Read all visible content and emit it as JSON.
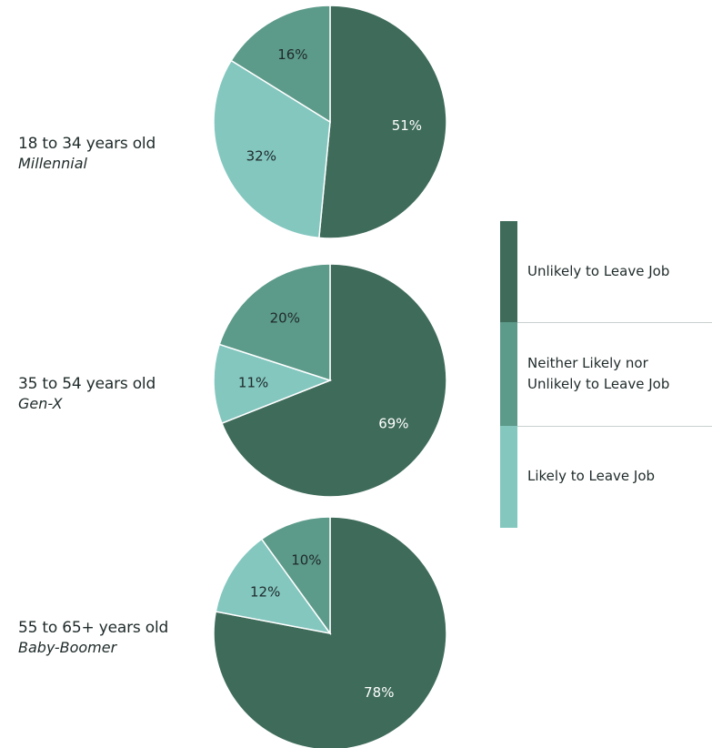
{
  "chart_data": {
    "type": "pie",
    "categories": [
      "Unlikely to Leave Job",
      "Neither Likely nor Unlikely to Leave Job",
      "Likely to Leave Job"
    ],
    "legend_position": "right",
    "colors": [
      "#3e6b5a",
      "#5c9a89",
      "#83c7bf"
    ],
    "label_colors": [
      "#ffffff",
      "#1f2a2a",
      "#1f2a2a"
    ],
    "groups": [
      {
        "age": "18 to 34 years old",
        "generation": "Millennial",
        "values": [
          51,
          16,
          32
        ],
        "labels": [
          "51%",
          "16%",
          "32%"
        ]
      },
      {
        "age": "35 to 54 years old",
        "generation": "Gen-X",
        "values": [
          69,
          20,
          11
        ],
        "labels": [
          "69%",
          "20%",
          "11%"
        ]
      },
      {
        "age": "55 to 65+ years old",
        "generation": "Baby-Boomer",
        "values": [
          78,
          10,
          12
        ],
        "labels": [
          "78%",
          "10%",
          "12%"
        ]
      }
    ],
    "legend": [
      {
        "lines": [
          "Unlikely to Leave Job"
        ]
      },
      {
        "lines": [
          "Neither Likely nor",
          "Unlikely to Leave Job"
        ]
      },
      {
        "lines": [
          "Likely to Leave Job"
        ]
      }
    ]
  }
}
